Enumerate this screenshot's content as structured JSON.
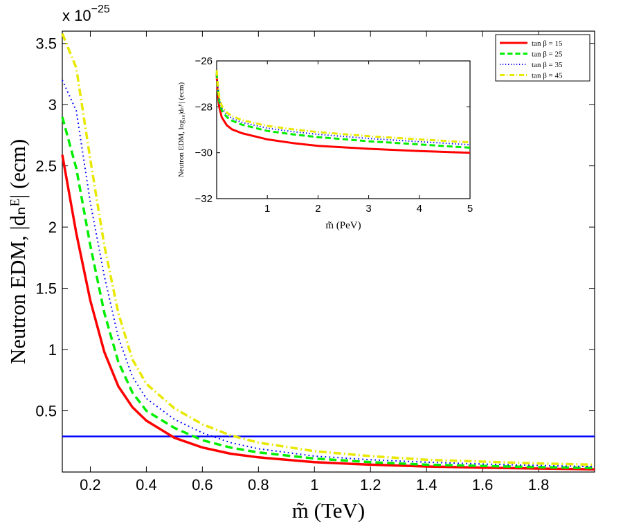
{
  "chart_data": [
    {
      "type": "line",
      "xlabel": "m̃ (TeV)",
      "ylabel": "Neutron EDM, |dₙᴱ| (ecm)",
      "y_multiplier": "x 10",
      "y_multiplier_exponent": "−25",
      "xlim": [
        0.1,
        2.0
      ],
      "ylim": [
        0.0,
        3.6
      ],
      "x_ticks": [
        0.2,
        0.4,
        0.6,
        0.8,
        1.0,
        1.2,
        1.4,
        1.6,
        1.8
      ],
      "x_tick_labels": [
        "0.2",
        "0.4",
        "0.6",
        "0.8",
        "1",
        "1.2",
        "1.4",
        "1.6",
        "1.8"
      ],
      "y_ticks": [
        0.5,
        1.0,
        1.5,
        2.0,
        2.5,
        3.0,
        3.5
      ],
      "y_tick_labels": [
        "0.5",
        "1",
        "1.5",
        "2",
        "2.5",
        "3",
        "3.5"
      ],
      "grid": false,
      "legend_position": "top-right",
      "x": [
        0.1,
        0.15,
        0.2,
        0.25,
        0.3,
        0.35,
        0.4,
        0.5,
        0.6,
        0.7,
        0.8,
        1.0,
        1.2,
        1.4,
        1.6,
        1.8,
        2.0
      ],
      "series": [
        {
          "name": "tan β = 15",
          "color": "#ff0000",
          "dash": "solid",
          "values": [
            2.59,
            1.95,
            1.4,
            0.98,
            0.7,
            0.53,
            0.42,
            0.28,
            0.2,
            0.15,
            0.12,
            0.08,
            0.06,
            0.045,
            0.035,
            0.028,
            0.022
          ]
        },
        {
          "name": "tan β = 25",
          "color": "#00ee00",
          "dash": "dashed",
          "values": [
            2.9,
            2.48,
            1.85,
            1.3,
            0.9,
            0.65,
            0.5,
            0.36,
            0.26,
            0.2,
            0.16,
            0.11,
            0.08,
            0.06,
            0.05,
            0.04,
            0.033
          ]
        },
        {
          "name": "tan β = 35",
          "color": "#0000ff",
          "dash": "dotted",
          "values": [
            3.2,
            2.95,
            2.2,
            1.6,
            1.1,
            0.78,
            0.6,
            0.43,
            0.32,
            0.24,
            0.19,
            0.13,
            0.1,
            0.08,
            0.065,
            0.053,
            0.044
          ]
        },
        {
          "name": "tan β = 45",
          "color": "#e8e800",
          "dash": "dashdot",
          "values": [
            3.58,
            3.3,
            2.55,
            1.85,
            1.3,
            0.92,
            0.72,
            0.52,
            0.39,
            0.3,
            0.24,
            0.17,
            0.13,
            0.1,
            0.085,
            0.07,
            0.06
          ]
        }
      ],
      "reference_line": {
        "y": 0.29,
        "color": "#0000ff"
      }
    },
    {
      "type": "line",
      "xlabel": "m̃ (PeV)",
      "ylabel": "Neutron EDM, log₁₀|dₙᴱ| (ecm)",
      "xlim": [
        0.0,
        5.0
      ],
      "ylim": [
        -32,
        -26
      ],
      "x_ticks": [
        1,
        2,
        3,
        4,
        5
      ],
      "x_tick_labels": [
        "1",
        "2",
        "3",
        "4",
        "5"
      ],
      "y_ticks": [
        -32,
        -30,
        -28,
        -26
      ],
      "y_tick_labels": [
        "−32",
        "−30",
        "−28",
        "−26"
      ],
      "grid": false,
      "x": [
        0.0,
        0.02,
        0.05,
        0.1,
        0.2,
        0.3,
        0.5,
        1.0,
        1.5,
        2.0,
        3.0,
        4.0,
        5.0
      ],
      "series": [
        {
          "name": "tan β = 15",
          "color": "#ff0000",
          "dash": "solid",
          "values": [
            -26.6,
            -27.4,
            -28.0,
            -28.45,
            -28.8,
            -28.98,
            -29.15,
            -29.42,
            -29.58,
            -29.7,
            -29.83,
            -29.93,
            -30.0
          ]
        },
        {
          "name": "tan β = 25",
          "color": "#00ee00",
          "dash": "dashed",
          "values": [
            -26.5,
            -27.2,
            -27.75,
            -28.15,
            -28.45,
            -28.6,
            -28.78,
            -29.05,
            -29.2,
            -29.32,
            -29.5,
            -29.64,
            -29.78
          ]
        },
        {
          "name": "tan β = 35",
          "color": "#0000ff",
          "dash": "dotted",
          "values": [
            -26.45,
            -27.1,
            -27.65,
            -28.05,
            -28.35,
            -28.5,
            -28.68,
            -28.93,
            -29.08,
            -29.2,
            -29.38,
            -29.52,
            -29.65
          ]
        },
        {
          "name": "tan β = 45",
          "color": "#e8e800",
          "dash": "dashdot",
          "values": [
            -26.4,
            -27.0,
            -27.55,
            -27.95,
            -28.25,
            -28.4,
            -28.58,
            -28.83,
            -28.98,
            -29.1,
            -29.28,
            -29.42,
            -29.55
          ]
        }
      ]
    }
  ]
}
